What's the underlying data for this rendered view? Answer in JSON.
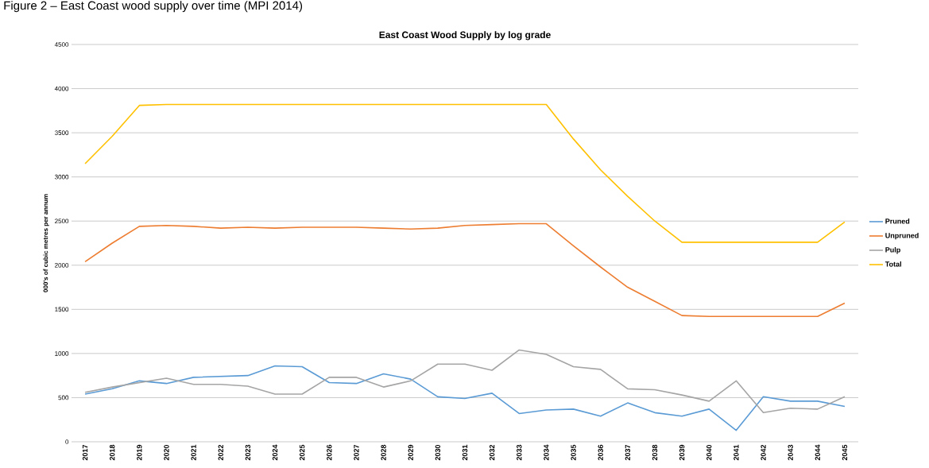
{
  "chart_data": {
    "type": "line",
    "title": "East Coast Wood Supply by log grade",
    "ylabel": "000's of cubic metres per annum",
    "annotations": [
      "Figure 2 – East Coast wood supply over time (MPI 2014)"
    ],
    "categories": [
      "2017",
      "2018",
      "2019",
      "2020",
      "2021",
      "2022",
      "2023",
      "2024",
      "2025",
      "2026",
      "2027",
      "2028",
      "2029",
      "2030",
      "2031",
      "2032",
      "2033",
      "2034",
      "2035",
      "2036",
      "2037",
      "2038",
      "2039",
      "2040",
      "2041",
      "2042",
      "2043",
      "2044",
      "2045"
    ],
    "series": [
      {
        "name": "Pruned",
        "color": "#5b9bd5",
        "values": [
          540,
          600,
          690,
          660,
          730,
          740,
          750,
          860,
          850,
          670,
          660,
          770,
          710,
          510,
          490,
          550,
          320,
          360,
          370,
          290,
          440,
          330,
          290,
          370,
          130,
          510,
          460,
          460,
          400
        ]
      },
      {
        "name": "Unpruned",
        "color": "#ed7d31",
        "values": [
          2040,
          2250,
          2440,
          2450,
          2440,
          2420,
          2430,
          2420,
          2430,
          2430,
          2430,
          2420,
          2410,
          2420,
          2450,
          2460,
          2470,
          2470,
          2220,
          1980,
          1750,
          1590,
          1430,
          1420,
          1420,
          1420,
          1420,
          1420,
          1570
        ]
      },
      {
        "name": "Pulp",
        "color": "#a5a5a5",
        "values": [
          560,
          620,
          670,
          720,
          650,
          650,
          630,
          540,
          540,
          730,
          730,
          620,
          690,
          880,
          880,
          810,
          1040,
          990,
          850,
          820,
          600,
          590,
          530,
          460,
          690,
          330,
          380,
          370,
          510
        ]
      },
      {
        "name": "Total",
        "color": "#ffc000",
        "values": [
          3150,
          3460,
          3810,
          3820,
          3820,
          3820,
          3820,
          3820,
          3820,
          3820,
          3820,
          3820,
          3820,
          3820,
          3820,
          3820,
          3820,
          3820,
          3430,
          3080,
          2780,
          2500,
          2260,
          2260,
          2260,
          2260,
          2260,
          2260,
          2490
        ]
      }
    ],
    "ylim": [
      0,
      4500
    ],
    "yticks": [
      0,
      500,
      1000,
      1500,
      2000,
      2500,
      3000,
      3500,
      4000,
      4500
    ],
    "grid": "y",
    "legend": "right",
    "marker": "none",
    "line_style": "solid"
  }
}
